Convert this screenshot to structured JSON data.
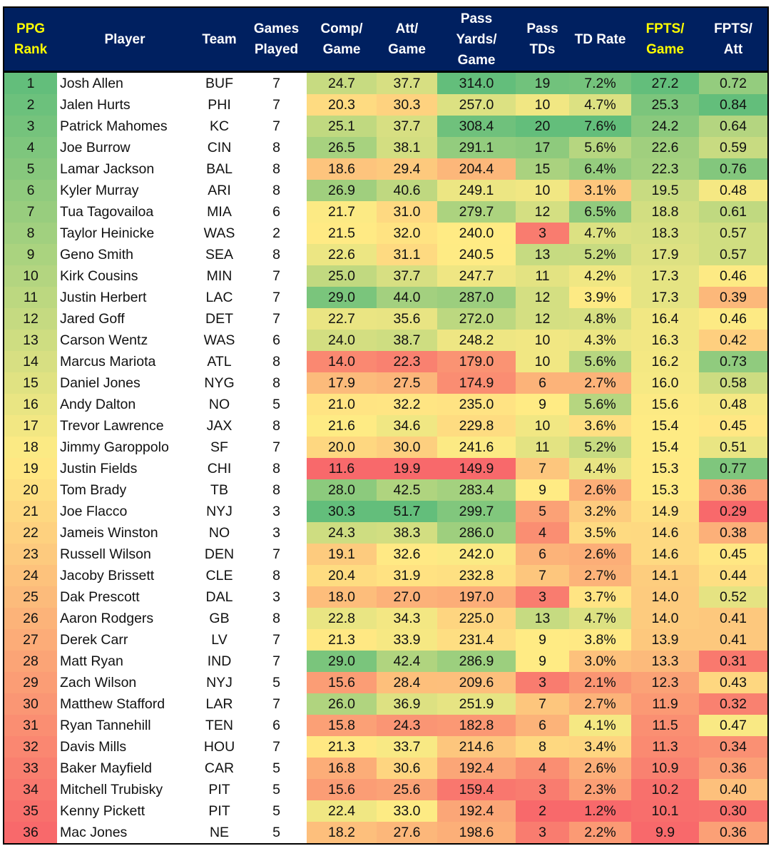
{
  "header": [
    {
      "label": "PPG Rank",
      "lines": [
        "PPG",
        "Rank"
      ],
      "highlight": true
    },
    {
      "label": "Player",
      "lines": [
        "Player"
      ]
    },
    {
      "label": "Team",
      "lines": [
        "Team"
      ]
    },
    {
      "label": "Games Played",
      "lines": [
        "Games",
        "Played"
      ]
    },
    {
      "label": "Comp/ Game",
      "lines": [
        "Comp/",
        "Game"
      ]
    },
    {
      "label": "Att/ Game",
      "lines": [
        "Att/",
        "Game"
      ]
    },
    {
      "label": "Pass Yards/ Game",
      "lines": [
        "Pass",
        "Yards/",
        "Game"
      ]
    },
    {
      "label": "Pass TDs",
      "lines": [
        "Pass",
        "TDs"
      ]
    },
    {
      "label": "TD Rate",
      "lines": [
        "TD Rate"
      ]
    },
    {
      "label": "FPTS/ Game",
      "lines": [
        "FPTS/",
        "Game"
      ],
      "highlight": true
    },
    {
      "label": "FPTS/ Att",
      "lines": [
        "FPTS/",
        "Att"
      ]
    }
  ],
  "colors": {
    "header_bg": "#002060",
    "header_text": "#FFFFFF",
    "header_highlight": "#FFFF00",
    "scale_low": "#F8696B",
    "scale_mid": "#FFEB84",
    "scale_high": "#63BE7B"
  },
  "rows": [
    [
      "1",
      "Josh Allen",
      "BUF",
      "7",
      "24.7",
      "37.7",
      "314.0",
      "19",
      "7.2%",
      "27.2",
      "0.72"
    ],
    [
      "2",
      "Jalen Hurts",
      "PHI",
      "7",
      "20.3",
      "30.3",
      "257.0",
      "10",
      "4.7%",
      "25.3",
      "0.84"
    ],
    [
      "3",
      "Patrick Mahomes",
      "KC",
      "7",
      "25.1",
      "37.7",
      "308.4",
      "20",
      "7.6%",
      "24.2",
      "0.64"
    ],
    [
      "4",
      "Joe Burrow",
      "CIN",
      "8",
      "26.5",
      "38.1",
      "291.1",
      "17",
      "5.6%",
      "22.6",
      "0.59"
    ],
    [
      "5",
      "Lamar Jackson",
      "BAL",
      "8",
      "18.6",
      "29.4",
      "204.4",
      "15",
      "6.4%",
      "22.3",
      "0.76"
    ],
    [
      "6",
      "Kyler Murray",
      "ARI",
      "8",
      "26.9",
      "40.6",
      "249.1",
      "10",
      "3.1%",
      "19.5",
      "0.48"
    ],
    [
      "7",
      "Tua Tagovailoa",
      "MIA",
      "6",
      "21.7",
      "31.0",
      "279.7",
      "12",
      "6.5%",
      "18.8",
      "0.61"
    ],
    [
      "8",
      "Taylor Heinicke",
      "WAS",
      "2",
      "21.5",
      "32.0",
      "240.0",
      "3",
      "4.7%",
      "18.3",
      "0.57"
    ],
    [
      "9",
      "Geno Smith",
      "SEA",
      "8",
      "22.6",
      "31.1",
      "240.5",
      "13",
      "5.2%",
      "17.9",
      "0.57"
    ],
    [
      "10",
      "Kirk Cousins",
      "MIN",
      "7",
      "25.0",
      "37.7",
      "247.7",
      "11",
      "4.2%",
      "17.3",
      "0.46"
    ],
    [
      "11",
      "Justin Herbert",
      "LAC",
      "7",
      "29.0",
      "44.0",
      "287.0",
      "12",
      "3.9%",
      "17.3",
      "0.39"
    ],
    [
      "12",
      "Jared Goff",
      "DET",
      "7",
      "22.7",
      "35.6",
      "272.0",
      "12",
      "4.8%",
      "16.4",
      "0.46"
    ],
    [
      "13",
      "Carson Wentz",
      "WAS",
      "6",
      "24.0",
      "38.7",
      "248.2",
      "10",
      "4.3%",
      "16.3",
      "0.42"
    ],
    [
      "14",
      "Marcus Mariota",
      "ATL",
      "8",
      "14.0",
      "22.3",
      "179.0",
      "10",
      "5.6%",
      "16.2",
      "0.73"
    ],
    [
      "15",
      "Daniel Jones",
      "NYG",
      "8",
      "17.9",
      "27.5",
      "174.9",
      "6",
      "2.7%",
      "16.0",
      "0.58"
    ],
    [
      "16",
      "Andy Dalton",
      "NO",
      "5",
      "21.0",
      "32.2",
      "235.0",
      "9",
      "5.6%",
      "15.6",
      "0.48"
    ],
    [
      "17",
      "Trevor Lawrence",
      "JAX",
      "8",
      "21.6",
      "34.6",
      "229.8",
      "10",
      "3.6%",
      "15.4",
      "0.45"
    ],
    [
      "18",
      "Jimmy Garoppolo",
      "SF",
      "7",
      "20.0",
      "30.0",
      "241.6",
      "11",
      "5.2%",
      "15.4",
      "0.51"
    ],
    [
      "19",
      "Justin Fields",
      "CHI",
      "8",
      "11.6",
      "19.9",
      "149.9",
      "7",
      "4.4%",
      "15.3",
      "0.77"
    ],
    [
      "20",
      "Tom Brady",
      "TB",
      "8",
      "28.0",
      "42.5",
      "283.4",
      "9",
      "2.6%",
      "15.3",
      "0.36"
    ],
    [
      "21",
      "Joe Flacco",
      "NYJ",
      "3",
      "30.3",
      "51.7",
      "299.7",
      "5",
      "3.2%",
      "14.9",
      "0.29"
    ],
    [
      "22",
      "Jameis Winston",
      "NO",
      "3",
      "24.3",
      "38.3",
      "286.0",
      "4",
      "3.5%",
      "14.6",
      "0.38"
    ],
    [
      "23",
      "Russell Wilson",
      "DEN",
      "7",
      "19.1",
      "32.6",
      "242.0",
      "6",
      "2.6%",
      "14.6",
      "0.45"
    ],
    [
      "24",
      "Jacoby Brissett",
      "CLE",
      "8",
      "20.4",
      "31.9",
      "232.8",
      "7",
      "2.7%",
      "14.1",
      "0.44"
    ],
    [
      "25",
      "Dak Prescott",
      "DAL",
      "3",
      "18.0",
      "27.0",
      "197.0",
      "3",
      "3.7%",
      "14.0",
      "0.52"
    ],
    [
      "26",
      "Aaron Rodgers",
      "GB",
      "8",
      "22.8",
      "34.3",
      "225.0",
      "13",
      "4.7%",
      "14.0",
      "0.41"
    ],
    [
      "27",
      "Derek Carr",
      "LV",
      "7",
      "21.3",
      "33.9",
      "231.4",
      "9",
      "3.8%",
      "13.9",
      "0.41"
    ],
    [
      "28",
      "Matt Ryan",
      "IND",
      "7",
      "29.0",
      "42.4",
      "286.9",
      "9",
      "3.0%",
      "13.3",
      "0.31"
    ],
    [
      "29",
      "Zach Wilson",
      "NYJ",
      "5",
      "15.6",
      "28.4",
      "209.6",
      "3",
      "2.1%",
      "12.3",
      "0.43"
    ],
    [
      "30",
      "Matthew Stafford",
      "LAR",
      "7",
      "26.0",
      "36.9",
      "251.9",
      "7",
      "2.7%",
      "11.9",
      "0.32"
    ],
    [
      "31",
      "Ryan Tannehill",
      "TEN",
      "6",
      "15.8",
      "24.3",
      "182.8",
      "6",
      "4.1%",
      "11.5",
      "0.47"
    ],
    [
      "32",
      "Davis Mills",
      "HOU",
      "7",
      "21.3",
      "33.7",
      "214.6",
      "8",
      "3.4%",
      "11.3",
      "0.34"
    ],
    [
      "33",
      "Baker Mayfield",
      "CAR",
      "5",
      "16.8",
      "30.6",
      "192.4",
      "4",
      "2.6%",
      "10.9",
      "0.36"
    ],
    [
      "34",
      "Mitchell Trubisky",
      "PIT",
      "5",
      "15.6",
      "25.6",
      "159.4",
      "3",
      "2.3%",
      "10.2",
      "0.40"
    ],
    [
      "35",
      "Kenny Pickett",
      "PIT",
      "5",
      "22.4",
      "33.0",
      "192.4",
      "2",
      "1.2%",
      "10.1",
      "0.30"
    ],
    [
      "36",
      "Mac Jones",
      "NE",
      "5",
      "18.2",
      "27.6",
      "198.6",
      "3",
      "2.2%",
      "9.9",
      "0.36"
    ]
  ]
}
